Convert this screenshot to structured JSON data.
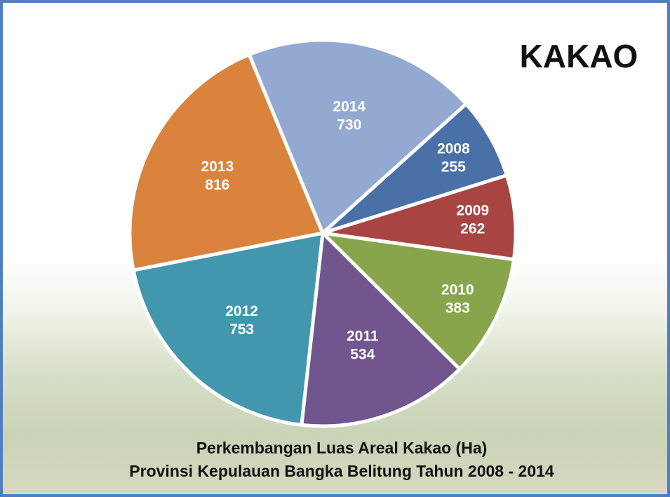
{
  "chart_data": {
    "type": "pie",
    "title": "KAKAO",
    "subtitle": [
      "Perkembangan Luas Areal Kakao (Ha)",
      "Provinsi Kepulauan Bangka Belitung Tahun 2008 - 2014"
    ],
    "categories": [
      "2008",
      "2009",
      "2010",
      "2011",
      "2012",
      "2013",
      "2014"
    ],
    "values": [
      255,
      262,
      383,
      534,
      753,
      816,
      730
    ],
    "colors": [
      "#4a71a7",
      "#a84543",
      "#88a54b",
      "#70558f",
      "#4297ae",
      "#d9833d",
      "#94a9d1"
    ]
  }
}
